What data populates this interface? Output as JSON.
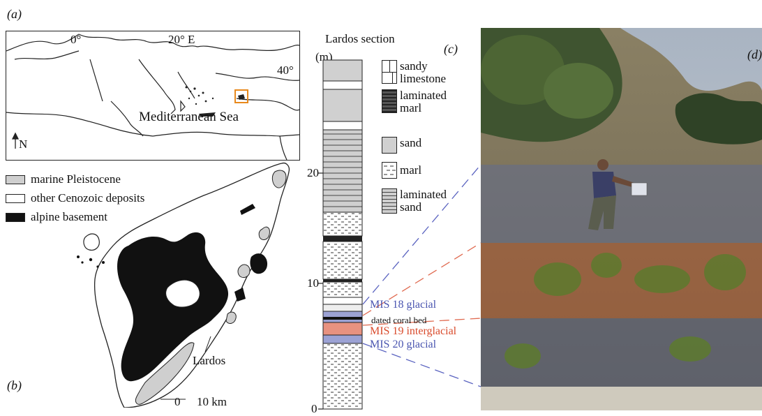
{
  "panels": {
    "a": "(a)",
    "b": "(b)",
    "c": "(c)",
    "d": "(d)"
  },
  "map_a": {
    "lon_0": "0°",
    "lon_20": "20° E",
    "lat_40": "40°",
    "sea": "Mediterranean Sea",
    "north": "N"
  },
  "map_b": {
    "legend": [
      {
        "label": "marine Pleistocene",
        "color": "#cfcfcf"
      },
      {
        "label": "other Cenozoic deposits",
        "color": "#ffffff"
      },
      {
        "label": "alpine basement",
        "color": "#111111"
      }
    ],
    "place": "Lardos",
    "scale_0": "0",
    "scale_10": "10 km"
  },
  "section": {
    "title": "Lardos section",
    "unit": "(m)",
    "ticks": [
      "20",
      "10",
      "0"
    ],
    "lithology_legend": [
      {
        "lines": [
          "sandy",
          "limestone"
        ],
        "pattern": "limestone"
      },
      {
        "lines": [
          "laminated",
          "marl"
        ],
        "pattern": "laminated-marl"
      },
      {
        "lines": [
          "sand"
        ],
        "pattern": "sand"
      },
      {
        "lines": [
          "marl"
        ],
        "pattern": "marl"
      },
      {
        "lines": [
          "laminated",
          "sand"
        ],
        "pattern": "laminated-sand"
      }
    ],
    "annotations": {
      "mis18": "MIS 18 glacial",
      "coral": "dated coral bed",
      "mis19": "MIS 19 interglacial",
      "mis20": "MIS 20 glacial"
    },
    "colors": {
      "glacial": "#4a55b0",
      "interglacial": "#d94a2b",
      "coral": "#111111"
    }
  }
}
